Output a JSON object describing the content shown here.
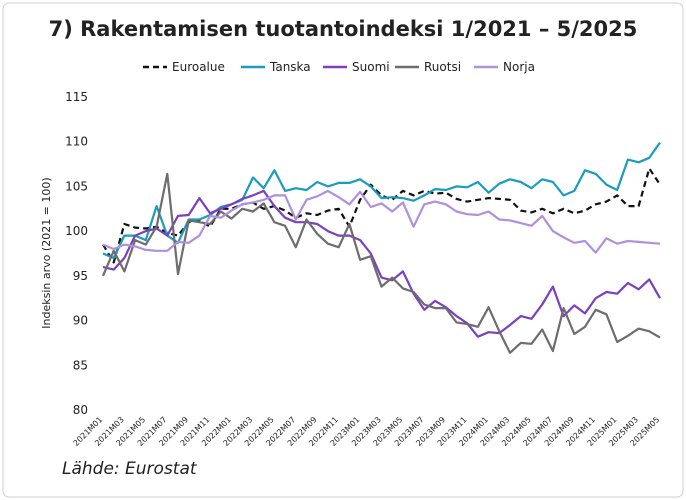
{
  "chart_data": {
    "type": "line",
    "title": "7) Rakentamisen tuotantoindeksi 1/2021 – 5/2025",
    "y_label": "Indeksin arvo (2021 = 100)",
    "source": "Lähde: Eurostat",
    "categories": [
      "2021M01",
      null,
      "2021M03",
      null,
      "2021M05",
      null,
      "2021M07",
      null,
      "2021M09",
      null,
      "2021M11",
      null,
      "2022M01",
      null,
      "2022M03",
      null,
      "2022M05",
      null,
      "2022M07",
      null,
      "2022M09",
      null,
      "2022M11",
      null,
      "2023M01",
      null,
      "2023M03",
      null,
      "2023M05",
      null,
      "2023M07",
      null,
      "2023M09",
      null,
      "2023M11",
      null,
      "2024M01",
      null,
      "2024M03",
      null,
      "2024M05",
      null,
      "2024M07",
      null,
      "2024M09",
      null,
      "2024M11",
      null,
      "2025M01",
      null,
      "2025M03",
      null,
      "2025M05"
    ],
    "series": [
      {
        "name": "Euroalue",
        "color": "#111111",
        "line_style": "dashed",
        "values": [
          98.5,
          96.5,
          100.8,
          100.4,
          100.3,
          100.5,
          99.8,
          99.5,
          101,
          101.2,
          100.5,
          102.5,
          102.5,
          103,
          103.2,
          102.5,
          102.8,
          102.3,
          101.5,
          102,
          101.8,
          102.3,
          102.5,
          100.5,
          103.5,
          105.2,
          104,
          103.5,
          104.5,
          104,
          104.5,
          104.2,
          104.3,
          103.6,
          103.3,
          103.5,
          103.7,
          103.6,
          103.5,
          102.3,
          102.1,
          102.5,
          102,
          102.5,
          102,
          102.3,
          103,
          103.3,
          104,
          102.8,
          102.8,
          107,
          105.2
        ]
      },
      {
        "name": "Tanska",
        "color": "#1a9bc0",
        "line_style": "solid",
        "values": [
          97.5,
          97,
          99.5,
          99.5,
          99,
          102.8,
          99.5,
          98.7,
          101.3,
          101.3,
          101.8,
          102.7,
          103,
          103.5,
          106,
          104.8,
          106.8,
          104.5,
          104.8,
          104.6,
          105.5,
          105,
          105.4,
          105.4,
          105.8,
          105,
          103.7,
          103.8,
          103.7,
          103.4,
          104,
          104.7,
          104.6,
          105,
          104.9,
          105.5,
          104.3,
          105.3,
          105.8,
          105.5,
          104.8,
          105.8,
          105.5,
          104,
          104.5,
          106.8,
          106.4,
          105.2,
          104.6,
          108,
          107.7,
          108.2,
          109.9
        ]
      },
      {
        "name": "Suomi",
        "color": "#7b3fbf",
        "line_style": "solid",
        "values": [
          96,
          95.7,
          97,
          99.5,
          100,
          100.3,
          99.5,
          101.7,
          101.8,
          103.7,
          102,
          102.5,
          103,
          103.6,
          104,
          104.5,
          102.8,
          101.5,
          101,
          101,
          100.8,
          100,
          99.5,
          99.5,
          99,
          97.5,
          94.8,
          94.5,
          95.5,
          93,
          91.2,
          92.2,
          91.5,
          90.5,
          89.7,
          88.2,
          88.7,
          88.6,
          89.5,
          90.5,
          90.2,
          91.8,
          93.8,
          90.5,
          91.7,
          90.8,
          92.5,
          93.2,
          93,
          94.2,
          93.5,
          94.6,
          92.5
        ]
      },
      {
        "name": "Ruotsi",
        "color": "#6d6d6d",
        "line_style": "solid",
        "values": [
          95,
          97.8,
          95.5,
          99,
          98.5,
          100.5,
          106.4,
          95.2,
          101.2,
          101,
          100.8,
          102.2,
          101.4,
          102.5,
          102.2,
          103.1,
          101,
          100.6,
          98.2,
          101.3,
          99.7,
          98.6,
          98.2,
          100.8,
          96.8,
          97.2,
          93.8,
          94.8,
          93.6,
          93.2,
          91.8,
          91.4,
          91.4,
          89.8,
          89.6,
          89.3,
          91.5,
          88.8,
          86.4,
          87.5,
          87.4,
          89,
          86.6,
          91.4,
          88.5,
          89.3,
          91.2,
          90.7,
          87.6,
          88.3,
          89.1,
          88.8,
          88.1
        ]
      },
      {
        "name": "Norja",
        "color": "#b08fdd",
        "line_style": "solid",
        "values": [
          98.5,
          98,
          98.5,
          98.3,
          97.9,
          97.8,
          97.8,
          98.8,
          98.7,
          99.5,
          101.7,
          101.5,
          102.3,
          103,
          103.2,
          103.5,
          104,
          104,
          101.3,
          103.5,
          103.9,
          104.5,
          103.8,
          103,
          104.4,
          102.7,
          103.1,
          102.2,
          103.2,
          100.5,
          103,
          103.3,
          103,
          102.2,
          101.9,
          101.8,
          102.2,
          101.3,
          101.2,
          100.9,
          100.6,
          101.7,
          100,
          99.3,
          98.7,
          98.9,
          97.6,
          99.2,
          98.6,
          98.9,
          98.8,
          98.7,
          98.6
        ]
      }
    ],
    "ylim": [
      80,
      115
    ],
    "yticks": [
      80,
      85,
      90,
      95,
      100,
      105,
      110,
      115
    ],
    "grid": false,
    "legend": "top"
  }
}
